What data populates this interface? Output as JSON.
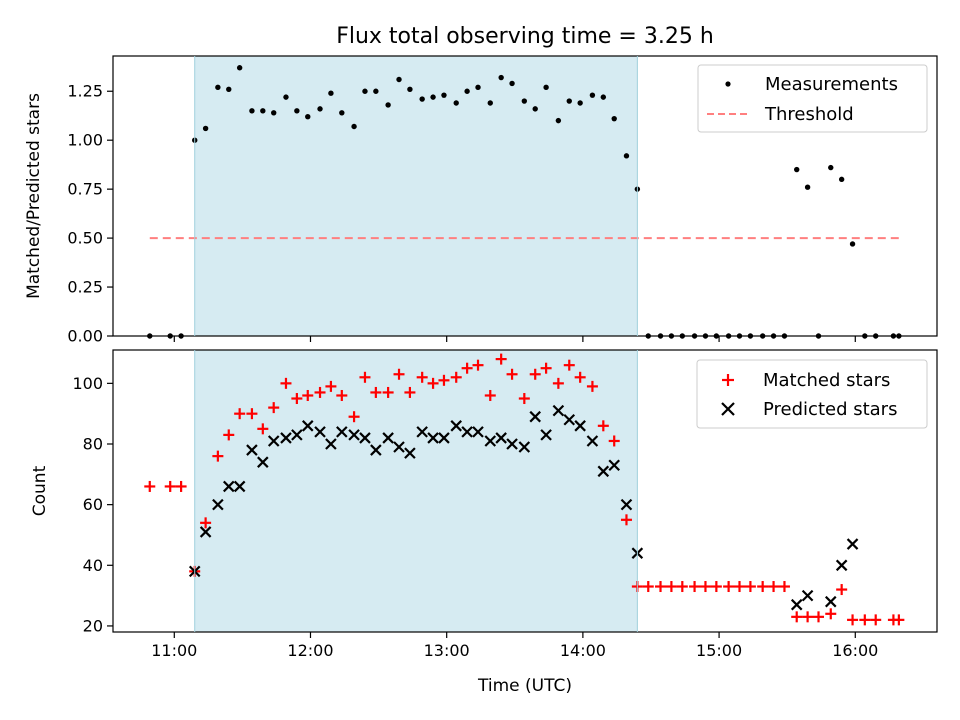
{
  "chart_data": [
    {
      "type": "scatter",
      "title": "Flux total observing time = 3.25 h",
      "xlabel": "",
      "ylabel": "Matched/Predicted stars",
      "ylim": [
        0,
        1.43
      ],
      "yticks": [
        "0.00",
        "0.25",
        "0.50",
        "0.75",
        "1.00",
        "1.25"
      ],
      "ytick_values": [
        0,
        0.25,
        0.5,
        0.75,
        1.0,
        1.25
      ],
      "xlim_hours": [
        10.55,
        16.6
      ],
      "xtick_values": [
        11,
        12,
        13,
        14,
        15,
        16
      ],
      "xtick_labels": [],
      "shaded_span_hours": [
        11.15,
        14.4
      ],
      "shaded_color": "#add8e6",
      "legend_position": "top-right",
      "series": [
        {
          "name": "Measurements",
          "kind": "points",
          "color": "#000000",
          "points": [
            [
              10.82,
              0
            ],
            [
              10.97,
              0
            ],
            [
              11.05,
              0
            ],
            [
              11.15,
              1.0
            ],
            [
              11.23,
              1.06
            ],
            [
              11.32,
              1.27
            ],
            [
              11.4,
              1.26
            ],
            [
              11.48,
              1.37
            ],
            [
              11.57,
              1.15
            ],
            [
              11.65,
              1.15
            ],
            [
              11.73,
              1.14
            ],
            [
              11.82,
              1.22
            ],
            [
              11.9,
              1.15
            ],
            [
              11.98,
              1.12
            ],
            [
              12.07,
              1.16
            ],
            [
              12.15,
              1.24
            ],
            [
              12.23,
              1.14
            ],
            [
              12.32,
              1.07
            ],
            [
              12.4,
              1.25
            ],
            [
              12.48,
              1.25
            ],
            [
              12.57,
              1.18
            ],
            [
              12.65,
              1.31
            ],
            [
              12.73,
              1.26
            ],
            [
              12.82,
              1.21
            ],
            [
              12.9,
              1.22
            ],
            [
              12.98,
              1.23
            ],
            [
              13.07,
              1.19
            ],
            [
              13.15,
              1.25
            ],
            [
              13.23,
              1.27
            ],
            [
              13.32,
              1.19
            ],
            [
              13.4,
              1.32
            ],
            [
              13.48,
              1.29
            ],
            [
              13.57,
              1.2
            ],
            [
              13.65,
              1.16
            ],
            [
              13.73,
              1.27
            ],
            [
              13.82,
              1.1
            ],
            [
              13.9,
              1.2
            ],
            [
              13.98,
              1.19
            ],
            [
              14.07,
              1.23
            ],
            [
              14.15,
              1.22
            ],
            [
              14.23,
              1.11
            ],
            [
              14.32,
              0.92
            ],
            [
              14.4,
              0.75
            ],
            [
              14.48,
              0
            ],
            [
              14.57,
              0
            ],
            [
              14.65,
              0
            ],
            [
              14.73,
              0
            ],
            [
              14.82,
              0
            ],
            [
              14.9,
              0
            ],
            [
              14.98,
              0
            ],
            [
              15.07,
              0
            ],
            [
              15.15,
              0
            ],
            [
              15.23,
              0
            ],
            [
              15.32,
              0
            ],
            [
              15.4,
              0
            ],
            [
              15.48,
              0
            ],
            [
              15.57,
              0.85
            ],
            [
              15.65,
              0.76
            ],
            [
              15.73,
              0
            ],
            [
              15.82,
              0.86
            ],
            [
              15.9,
              0.8
            ],
            [
              15.98,
              0.47
            ],
            [
              16.07,
              0
            ],
            [
              16.15,
              0
            ],
            [
              16.28,
              0
            ],
            [
              16.32,
              0
            ]
          ]
        },
        {
          "name": "Threshold",
          "kind": "dashed-line",
          "color": "#ff7f7f",
          "x": [
            10.82,
            16.32
          ],
          "y": [
            0.5,
            0.5
          ]
        }
      ]
    },
    {
      "type": "scatter",
      "title": "",
      "xlabel": "Time (UTC)",
      "ylabel": "Count",
      "ylim": [
        18,
        111
      ],
      "yticks": [
        "20",
        "40",
        "60",
        "80",
        "100"
      ],
      "ytick_values": [
        20,
        40,
        60,
        80,
        100
      ],
      "xlim_hours": [
        10.55,
        16.6
      ],
      "xtick_values": [
        11,
        12,
        13,
        14,
        15,
        16
      ],
      "xtick_labels": [
        "11:00",
        "12:00",
        "13:00",
        "14:00",
        "15:00",
        "16:00"
      ],
      "shaded_span_hours": [
        11.15,
        14.4
      ],
      "shaded_color": "#add8e6",
      "legend_position": "top-right",
      "series": [
        {
          "name": "Matched stars",
          "kind": "plus",
          "color": "#ff0000",
          "points": [
            [
              10.82,
              66
            ],
            [
              10.97,
              66
            ],
            [
              11.05,
              66
            ],
            [
              11.15,
              38
            ],
            [
              11.23,
              54
            ],
            [
              11.32,
              76
            ],
            [
              11.4,
              83
            ],
            [
              11.48,
              90
            ],
            [
              11.57,
              90
            ],
            [
              11.65,
              85
            ],
            [
              11.73,
              92
            ],
            [
              11.82,
              100
            ],
            [
              11.9,
              95
            ],
            [
              11.98,
              96
            ],
            [
              12.07,
              97
            ],
            [
              12.15,
              99
            ],
            [
              12.23,
              96
            ],
            [
              12.32,
              89
            ],
            [
              12.4,
              102
            ],
            [
              12.48,
              97
            ],
            [
              12.57,
              97
            ],
            [
              12.65,
              103
            ],
            [
              12.73,
              97
            ],
            [
              12.82,
              102
            ],
            [
              12.9,
              100
            ],
            [
              12.98,
              101
            ],
            [
              13.07,
              102
            ],
            [
              13.15,
              105
            ],
            [
              13.23,
              106
            ],
            [
              13.32,
              96
            ],
            [
              13.4,
              108
            ],
            [
              13.48,
              103
            ],
            [
              13.57,
              95
            ],
            [
              13.65,
              103
            ],
            [
              13.73,
              105
            ],
            [
              13.82,
              100
            ],
            [
              13.9,
              106
            ],
            [
              13.98,
              102
            ],
            [
              14.07,
              99
            ],
            [
              14.15,
              86
            ],
            [
              14.23,
              81
            ],
            [
              14.32,
              55
            ],
            [
              14.4,
              33
            ],
            [
              14.48,
              33
            ],
            [
              14.57,
              33
            ],
            [
              14.65,
              33
            ],
            [
              14.73,
              33
            ],
            [
              14.82,
              33
            ],
            [
              14.9,
              33
            ],
            [
              14.98,
              33
            ],
            [
              15.07,
              33
            ],
            [
              15.15,
              33
            ],
            [
              15.23,
              33
            ],
            [
              15.32,
              33
            ],
            [
              15.4,
              33
            ],
            [
              15.48,
              33
            ],
            [
              15.57,
              23
            ],
            [
              15.65,
              23
            ],
            [
              15.73,
              23
            ],
            [
              15.82,
              24
            ],
            [
              15.9,
              32
            ],
            [
              15.98,
              22
            ],
            [
              16.07,
              22
            ],
            [
              16.15,
              22
            ],
            [
              16.28,
              22
            ],
            [
              16.32,
              22
            ]
          ]
        },
        {
          "name": "Predicted stars",
          "kind": "cross",
          "color": "#000000",
          "points": [
            [
              11.15,
              38
            ],
            [
              11.23,
              51
            ],
            [
              11.32,
              60
            ],
            [
              11.4,
              66
            ],
            [
              11.48,
              66
            ],
            [
              11.57,
              78
            ],
            [
              11.65,
              74
            ],
            [
              11.73,
              81
            ],
            [
              11.82,
              82
            ],
            [
              11.9,
              83
            ],
            [
              11.98,
              86
            ],
            [
              12.07,
              84
            ],
            [
              12.15,
              80
            ],
            [
              12.23,
              84
            ],
            [
              12.32,
              83
            ],
            [
              12.4,
              82
            ],
            [
              12.48,
              78
            ],
            [
              12.57,
              82
            ],
            [
              12.65,
              79
            ],
            [
              12.73,
              77
            ],
            [
              12.82,
              84
            ],
            [
              12.9,
              82
            ],
            [
              12.98,
              82
            ],
            [
              13.07,
              86
            ],
            [
              13.15,
              84
            ],
            [
              13.23,
              84
            ],
            [
              13.32,
              81
            ],
            [
              13.4,
              82
            ],
            [
              13.48,
              80
            ],
            [
              13.57,
              79
            ],
            [
              13.65,
              89
            ],
            [
              13.73,
              83
            ],
            [
              13.82,
              91
            ],
            [
              13.9,
              88
            ],
            [
              13.98,
              86
            ],
            [
              14.07,
              81
            ],
            [
              14.15,
              71
            ],
            [
              14.23,
              73
            ],
            [
              14.32,
              60
            ],
            [
              14.4,
              44
            ],
            [
              15.57,
              27
            ],
            [
              15.65,
              30
            ],
            [
              15.82,
              28
            ],
            [
              15.9,
              40
            ],
            [
              15.98,
              47
            ]
          ]
        }
      ]
    }
  ]
}
